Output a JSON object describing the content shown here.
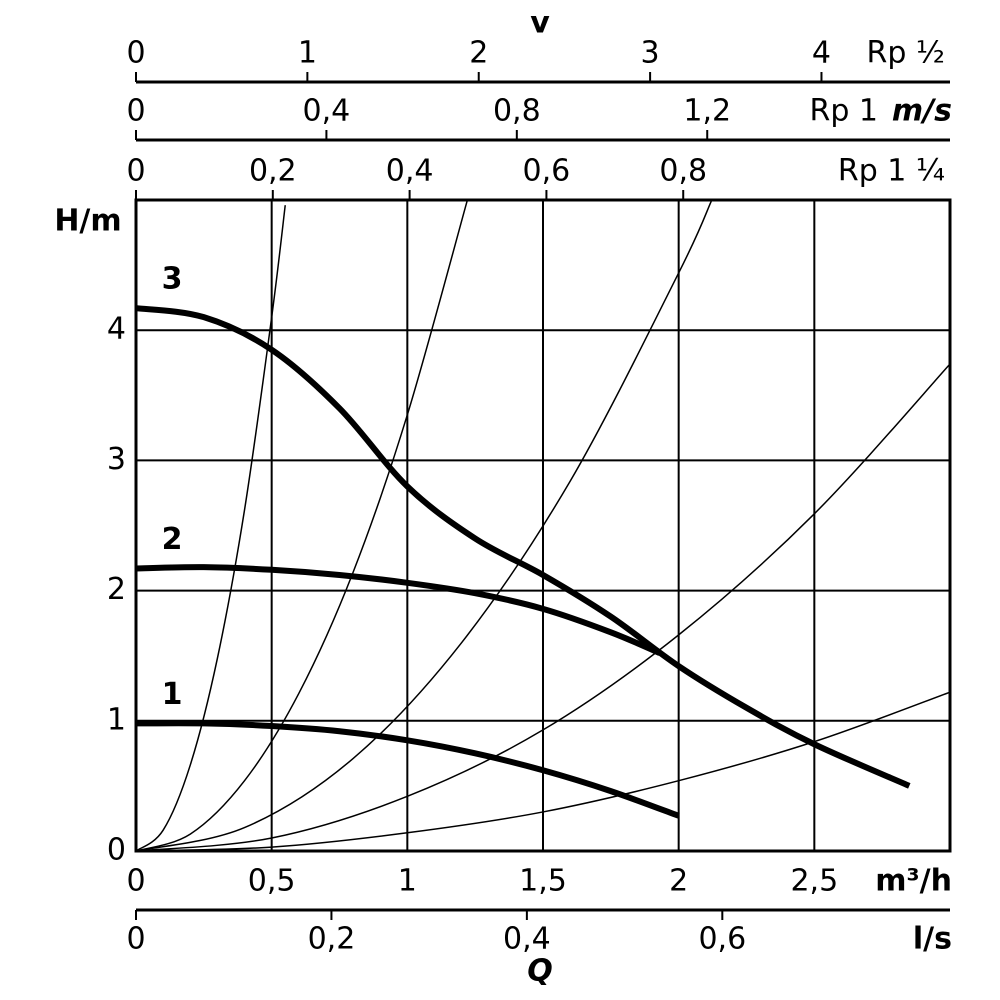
{
  "chart_data": {
    "type": "line",
    "top_title": "v",
    "top_unit": "m/s",
    "top_axes": [
      {
        "name": "Rp ½",
        "xlim": [
          0,
          4.75
        ],
        "xticks": [
          0,
          1,
          2,
          3,
          4
        ]
      },
      {
        "name": "Rp 1",
        "xlim": [
          0,
          1.71
        ],
        "xticks": [
          0,
          {
            "value": 0.4,
            "label": "0,4"
          },
          {
            "value": 0.8,
            "label": "0,8"
          },
          {
            "value": 1.2,
            "label": "1,2"
          }
        ]
      },
      {
        "name": "Rp 1 ¼",
        "xlim": [
          0,
          1.19
        ],
        "xticks": [
          0,
          {
            "value": 0.2,
            "label": "0,2"
          },
          {
            "value": 0.4,
            "label": "0,4"
          },
          {
            "value": 0.6,
            "label": "0,6"
          },
          {
            "value": 0.8,
            "label": "0,8"
          }
        ]
      }
    ],
    "y_label": "H/m",
    "ylim": [
      0,
      5
    ],
    "yticks": [
      0,
      1,
      2,
      3,
      4
    ],
    "x_unit": "m³/h",
    "xlim": [
      0,
      3
    ],
    "xticks": [
      0,
      {
        "value": 0.5,
        "label": "0,5"
      },
      1,
      {
        "value": 1.5,
        "label": "1,5"
      },
      2,
      {
        "value": 2.5,
        "label": "2,5"
      }
    ],
    "x2_unit": "l/s",
    "x2lim": [
      0,
      0.833
    ],
    "x2ticks": [
      0,
      {
        "value": 0.2,
        "label": "0,2"
      },
      {
        "value": 0.4,
        "label": "0,4"
      },
      {
        "value": 0.6,
        "label": "0,6"
      }
    ],
    "x_label": "Q",
    "grid": true,
    "series": [
      {
        "name": "1",
        "color": "#000000",
        "x": [
          0,
          0.25,
          0.5,
          0.75,
          1,
          1.25,
          1.5,
          1.75,
          2
        ],
        "values": [
          0.98,
          0.98,
          0.96,
          0.92,
          0.85,
          0.75,
          0.62,
          0.46,
          0.27
        ]
      },
      {
        "name": "2",
        "color": "#000000",
        "x": [
          0,
          0.25,
          0.5,
          0.75,
          1,
          1.25,
          1.5,
          1.75,
          1.93
        ],
        "values": [
          2.17,
          2.18,
          2.16,
          2.12,
          2.06,
          1.98,
          1.86,
          1.68,
          1.52
        ]
      },
      {
        "name": "3",
        "color": "#000000",
        "x": [
          0,
          0.25,
          0.5,
          0.75,
          1,
          1.25,
          1.5,
          1.75,
          2,
          2.25,
          2.5,
          2.85
        ],
        "values": [
          4.17,
          4.1,
          3.85,
          3.4,
          2.8,
          2.4,
          2.12,
          1.8,
          1.42,
          1.1,
          0.82,
          0.5
        ]
      }
    ],
    "system_curves": [
      {
        "color": "#000000",
        "x": [
          0,
          0.1,
          0.2,
          0.3,
          0.4,
          0.5,
          0.55
        ],
        "values": [
          0,
          0.16,
          0.66,
          1.48,
          2.62,
          4.1,
          4.96
        ]
      },
      {
        "color": "#000000",
        "x": [
          0,
          0.2,
          0.4,
          0.6,
          0.8,
          1,
          1.22
        ],
        "values": [
          0,
          0.13,
          0.54,
          1.21,
          2.14,
          3.35,
          4.99
        ]
      },
      {
        "color": "#000000",
        "x": [
          0,
          0.4,
          0.8,
          1.2,
          1.6,
          2,
          2.12
        ],
        "values": [
          0,
          0.18,
          0.71,
          1.6,
          2.84,
          4.44,
          4.99
        ]
      },
      {
        "color": "#000000",
        "x": [
          0,
          0.5,
          1,
          1.5,
          2,
          2.5,
          3
        ],
        "values": [
          0,
          0.1,
          0.42,
          0.93,
          1.66,
          2.59,
          3.74
        ]
      },
      {
        "color": "#000000",
        "x": [
          0,
          0.5,
          1,
          1.5,
          2,
          2.5,
          3
        ],
        "values": [
          0,
          0.03,
          0.14,
          0.3,
          0.54,
          0.84,
          1.22
        ]
      }
    ]
  }
}
